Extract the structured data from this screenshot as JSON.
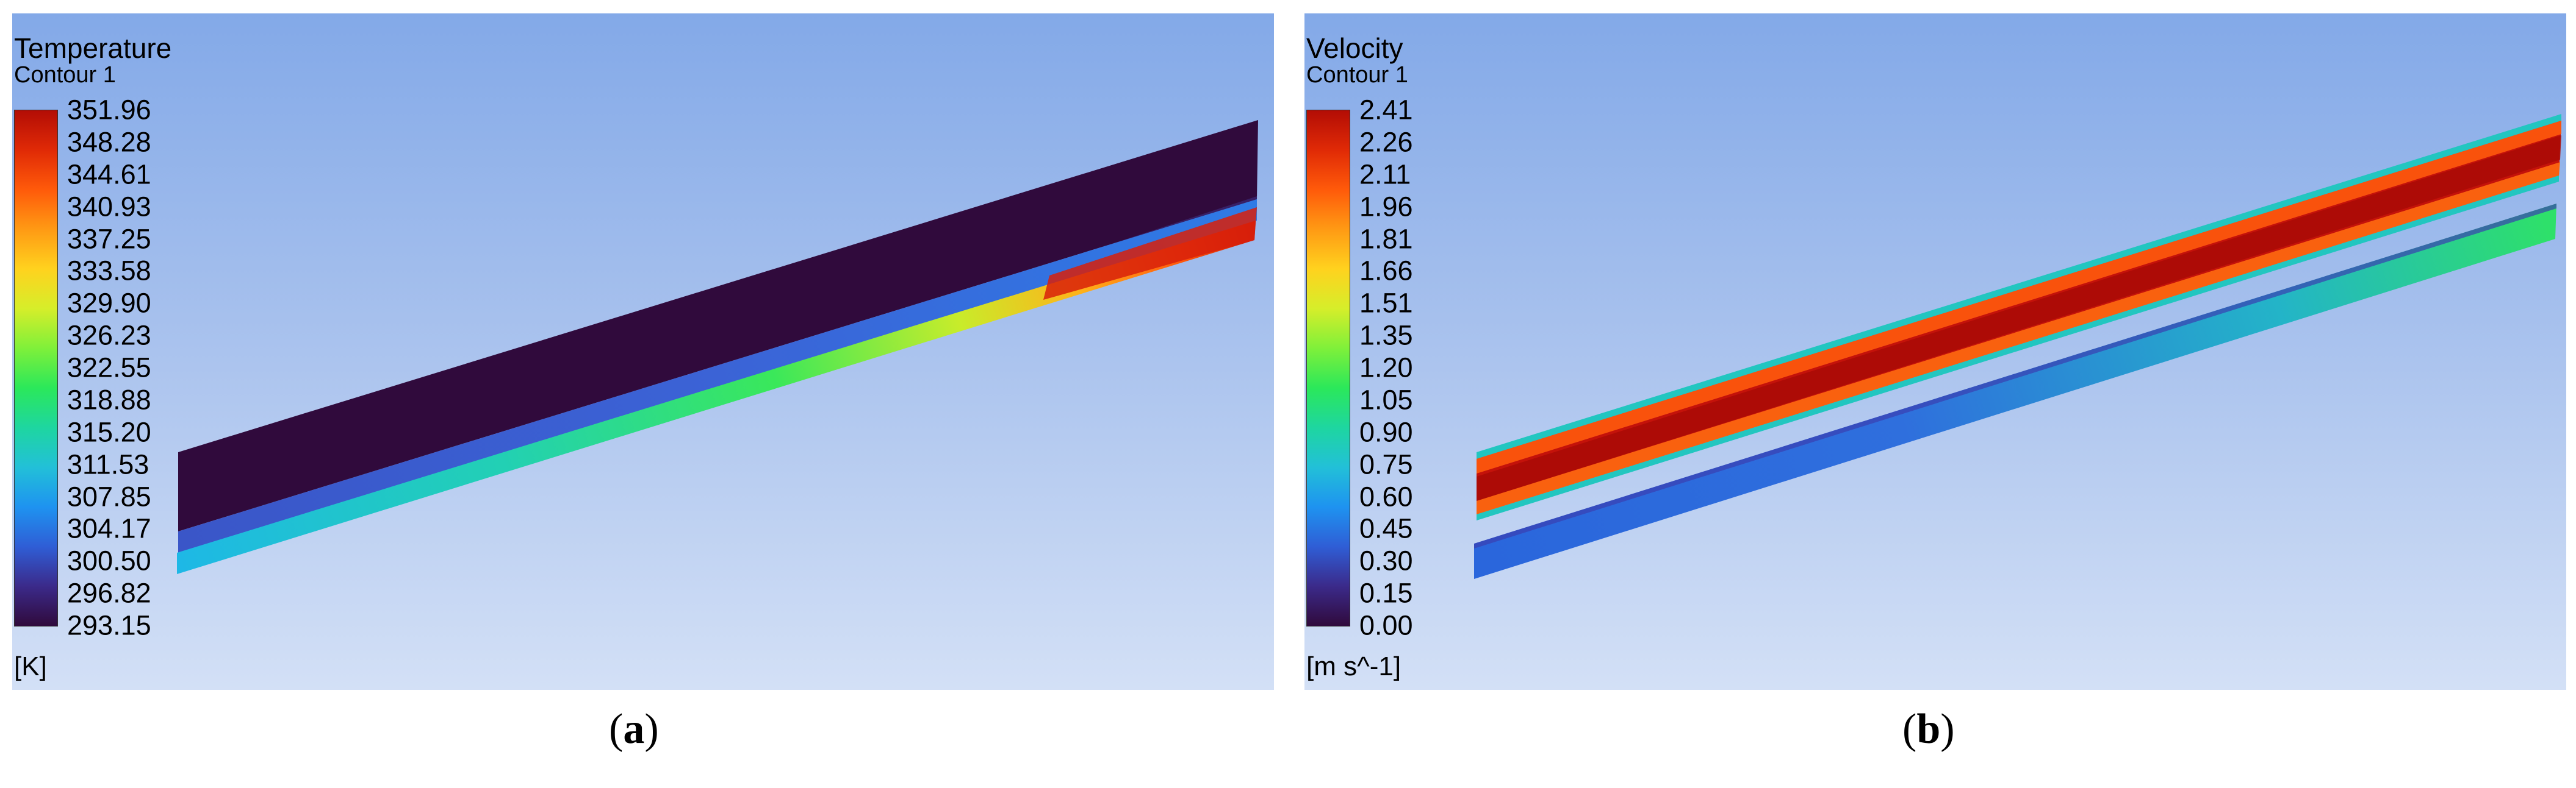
{
  "panels": [
    {
      "id": "a",
      "title": "Temperature",
      "subtitle": "Contour 1",
      "unit": "[K]",
      "ticks": [
        "351.96",
        "348.28",
        "344.61",
        "340.93",
        "337.25",
        "333.58",
        "329.90",
        "326.23",
        "322.55",
        "318.88",
        "315.20",
        "311.53",
        "307.85",
        "304.17",
        "300.50",
        "296.82",
        "293.15"
      ],
      "caption_open": "(",
      "caption_letter": "a",
      "caption_close": ")"
    },
    {
      "id": "b",
      "title": "Velocity",
      "subtitle": "Contour 1",
      "unit": "[m s^-1]",
      "ticks": [
        "2.41",
        "2.26",
        "2.11",
        "1.96",
        "1.81",
        "1.66",
        "1.51",
        "1.35",
        "1.20",
        "1.05",
        "0.90",
        "0.75",
        "0.60",
        "0.45",
        "0.30",
        "0.15",
        "0.00"
      ],
      "caption_open": "(",
      "caption_letter": "b",
      "caption_close": ")"
    }
  ],
  "colormap": [
    "#300a3c",
    "#3b2a8a",
    "#2f5ed6",
    "#1e93f0",
    "#22c0d8",
    "#1ed6a0",
    "#2be85a",
    "#7ff03a",
    "#d6ee2a",
    "#ffd21e",
    "#ff9a14",
    "#ff5a0a",
    "#e02a06",
    "#b30d05"
  ]
}
